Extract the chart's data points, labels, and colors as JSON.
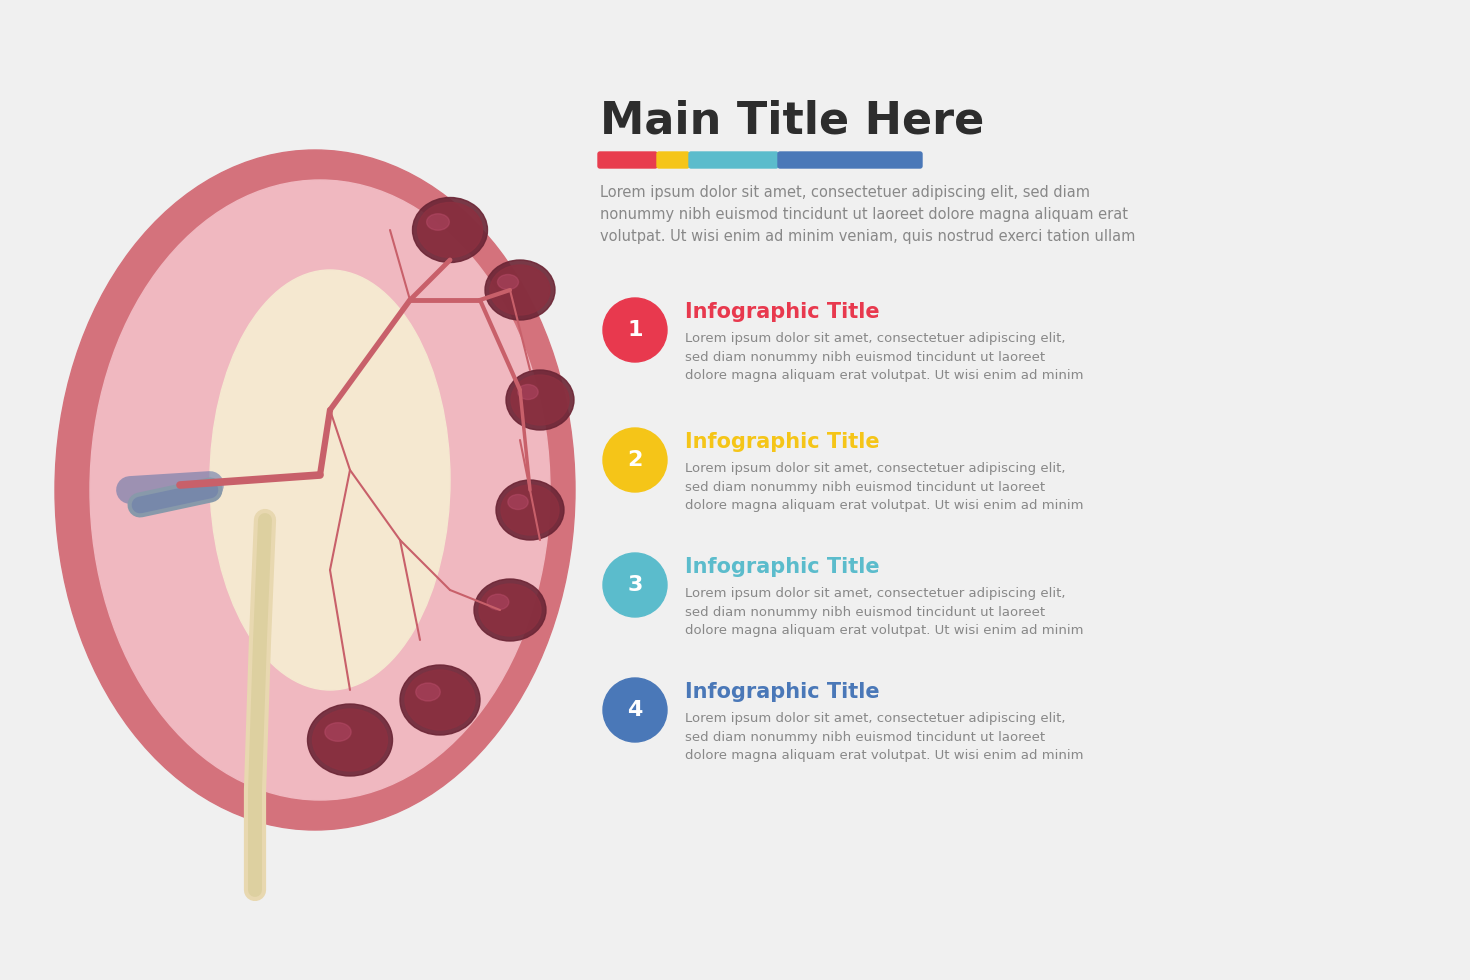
{
  "background_color": "#f0f0f0",
  "title": "Main Title Here",
  "title_color": "#2d2d2d",
  "title_fontsize": 32,
  "subtitle_text": "Lorem ipsum dolor sit amet, consectetuer adipiscing elit, sed diam\nnonummy nibh euismod tincidunt ut laoreet dolore magna aliquam erat\nvolutpat. Ut wisi enim ad minim veniam, quis nostrud exerci tation ullam",
  "subtitle_color": "#888888",
  "subtitle_fontsize": 10.5,
  "colorbar_colors": [
    "#e83d4e",
    "#f5c518",
    "#5bbccc",
    "#4a78b8"
  ],
  "items": [
    {
      "number": "1",
      "circle_color": "#e8394e",
      "title": "Infographic Title",
      "title_color": "#e8394e",
      "body": "Lorem ipsum dolor sit amet, consectetuer adipiscing elit,\nsed diam nonummy nibh euismod tincidunt ut laoreet\ndolore magna aliquam erat volutpat. Ut wisi enim ad minim"
    },
    {
      "number": "2",
      "circle_color": "#f5c518",
      "title": "Infographic Title",
      "title_color": "#f5c518",
      "body": "Lorem ipsum dolor sit amet, consectetuer adipiscing elit,\nsed diam nonummy nibh euismod tincidunt ut laoreet\ndolore magna aliquam erat volutpat. Ut wisi enim ad minim"
    },
    {
      "number": "3",
      "circle_color": "#5bbccc",
      "title": "Infographic Title",
      "title_color": "#5bbccc",
      "body": "Lorem ipsum dolor sit amet, consectetuer adipiscing elit,\nsed diam nonummy nibh euismod tincidunt ut laoreet\ndolore magna aliquam erat volutpat. Ut wisi enim ad minim"
    },
    {
      "number": "4",
      "circle_color": "#4a78b8",
      "title": "Infographic Title",
      "title_color": "#4a78b8",
      "body": "Lorem ipsum dolor sit amet, consectetuer adipiscing elit,\nsed diam nonummy nibh euismod tincidunt ut laoreet\ndolore magna aliquam erat volutpat. Ut wisi enim ad minim"
    }
  ],
  "kidney_outer_color": "#d4727c",
  "kidney_inner_pink": "#f0b8c0",
  "kidney_medulla_color": "#f5e8d0",
  "kidney_calyx_color": "#8b3040",
  "kidney_vessel_color": "#c8606a",
  "kidney_ureter_color": "#e8d8b0",
  "kidney_vein_color": "#8899aa"
}
